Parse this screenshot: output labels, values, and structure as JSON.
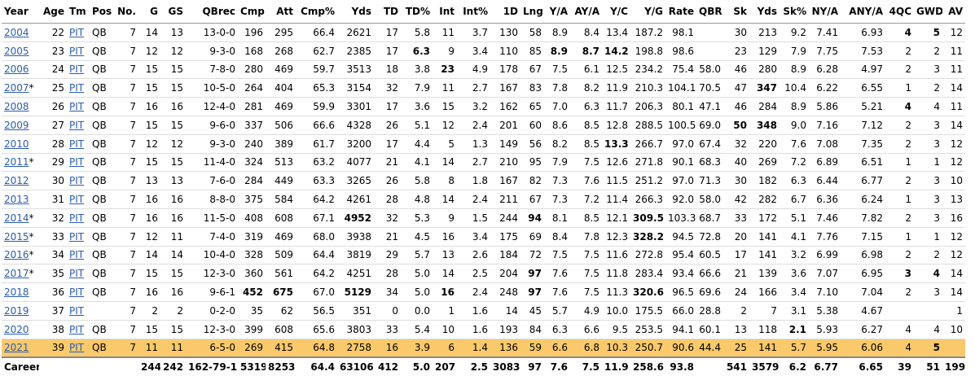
{
  "table": {
    "columns": [
      "Year",
      "Age",
      "Tm",
      "Pos",
      "No.",
      "G",
      "GS",
      "QBrec",
      "Cmp",
      "Att",
      "Cmp%",
      "Yds",
      "TD",
      "TD%",
      "Int",
      "Int%",
      "1D",
      "Lng",
      "Y/A",
      "AY/A",
      "Y/C",
      "Y/G",
      "Rate",
      "QBR",
      "Sk",
      "Yds",
      "Sk%",
      "NY/A",
      "ANY/A",
      "4QC",
      "GWD",
      "AV"
    ],
    "rows": [
      {
        "year": "2004",
        "cells": [
          "22",
          "PIT",
          "QB",
          "7",
          "14",
          "13",
          "13-0-0",
          "196",
          "295",
          "66.4",
          "2621",
          "17",
          "5.8",
          "11",
          "3.7",
          "130",
          "58",
          "8.9",
          "8.4",
          "13.4",
          "187.2",
          "98.1",
          null,
          "30",
          "213",
          "9.2",
          "7.41",
          "6.93",
          "4",
          "5",
          "12"
        ],
        "bold": [
          28,
          29
        ]
      },
      {
        "year": "2005",
        "cells": [
          "23",
          "PIT",
          "QB",
          "7",
          "12",
          "12",
          "9-3-0",
          "168",
          "268",
          "62.7",
          "2385",
          "17",
          "6.3",
          "9",
          "3.4",
          "110",
          "85",
          "8.9",
          "8.7",
          "14.2",
          "198.8",
          "98.6",
          null,
          "23",
          "129",
          "7.9",
          "7.75",
          "7.53",
          "2",
          "2",
          "11"
        ],
        "bold": [
          12,
          17,
          18,
          19
        ]
      },
      {
        "year": "2006",
        "cells": [
          "24",
          "PIT",
          "QB",
          "7",
          "15",
          "15",
          "7-8-0",
          "280",
          "469",
          "59.7",
          "3513",
          "18",
          "3.8",
          "23",
          "4.9",
          "178",
          "67",
          "7.5",
          "6.1",
          "12.5",
          "234.2",
          "75.4",
          "58.0",
          "46",
          "280",
          "8.9",
          "6.28",
          "4.97",
          "2",
          "3",
          "11"
        ],
        "bold": [
          13
        ]
      },
      {
        "year": "2007",
        "mark": "*",
        "cells": [
          "25",
          "PIT",
          "QB",
          "7",
          "15",
          "15",
          "10-5-0",
          "264",
          "404",
          "65.3",
          "3154",
          "32",
          "7.9",
          "11",
          "2.7",
          "167",
          "83",
          "7.8",
          "8.2",
          "11.9",
          "210.3",
          "104.1",
          "70.5",
          "47",
          "347",
          "10.4",
          "6.22",
          "6.55",
          "1",
          "2",
          "14"
        ],
        "bold": [
          24
        ]
      },
      {
        "year": "2008",
        "cells": [
          "26",
          "PIT",
          "QB",
          "7",
          "16",
          "16",
          "12-4-0",
          "281",
          "469",
          "59.9",
          "3301",
          "17",
          "3.6",
          "15",
          "3.2",
          "162",
          "65",
          "7.0",
          "6.3",
          "11.7",
          "206.3",
          "80.1",
          "47.1",
          "46",
          "284",
          "8.9",
          "5.86",
          "5.21",
          "4",
          "4",
          "11"
        ],
        "bold": [
          28
        ]
      },
      {
        "year": "2009",
        "cells": [
          "27",
          "PIT",
          "QB",
          "7",
          "15",
          "15",
          "9-6-0",
          "337",
          "506",
          "66.6",
          "4328",
          "26",
          "5.1",
          "12",
          "2.4",
          "201",
          "60",
          "8.6",
          "8.5",
          "12.8",
          "288.5",
          "100.5",
          "69.0",
          "50",
          "348",
          "9.0",
          "7.16",
          "7.12",
          "2",
          "3",
          "14"
        ],
        "bold": [
          23,
          24
        ]
      },
      {
        "year": "2010",
        "cells": [
          "28",
          "PIT",
          "QB",
          "7",
          "12",
          "12",
          "9-3-0",
          "240",
          "389",
          "61.7",
          "3200",
          "17",
          "4.4",
          "5",
          "1.3",
          "149",
          "56",
          "8.2",
          "8.5",
          "13.3",
          "266.7",
          "97.0",
          "67.4",
          "32",
          "220",
          "7.6",
          "7.08",
          "7.35",
          "2",
          "3",
          "12"
        ],
        "bold": [
          19
        ]
      },
      {
        "year": "2011",
        "mark": "*",
        "cells": [
          "29",
          "PIT",
          "QB",
          "7",
          "15",
          "15",
          "11-4-0",
          "324",
          "513",
          "63.2",
          "4077",
          "21",
          "4.1",
          "14",
          "2.7",
          "210",
          "95",
          "7.9",
          "7.5",
          "12.6",
          "271.8",
          "90.1",
          "68.3",
          "40",
          "269",
          "7.2",
          "6.89",
          "6.51",
          "1",
          "1",
          "12"
        ],
        "bold": []
      },
      {
        "year": "2012",
        "cells": [
          "30",
          "PIT",
          "QB",
          "7",
          "13",
          "13",
          "7-6-0",
          "284",
          "449",
          "63.3",
          "3265",
          "26",
          "5.8",
          "8",
          "1.8",
          "167",
          "82",
          "7.3",
          "7.6",
          "11.5",
          "251.2",
          "97.0",
          "71.3",
          "30",
          "182",
          "6.3",
          "6.44",
          "6.77",
          "2",
          "3",
          "10"
        ],
        "bold": []
      },
      {
        "year": "2013",
        "cells": [
          "31",
          "PIT",
          "QB",
          "7",
          "16",
          "16",
          "8-8-0",
          "375",
          "584",
          "64.2",
          "4261",
          "28",
          "4.8",
          "14",
          "2.4",
          "211",
          "67",
          "7.3",
          "7.2",
          "11.4",
          "266.3",
          "92.0",
          "58.0",
          "42",
          "282",
          "6.7",
          "6.36",
          "6.24",
          "1",
          "3",
          "13"
        ],
        "bold": []
      },
      {
        "year": "2014",
        "mark": "*",
        "cells": [
          "32",
          "PIT",
          "QB",
          "7",
          "16",
          "16",
          "11-5-0",
          "408",
          "608",
          "67.1",
          "4952",
          "32",
          "5.3",
          "9",
          "1.5",
          "244",
          "94",
          "8.1",
          "8.5",
          "12.1",
          "309.5",
          "103.3",
          "68.7",
          "33",
          "172",
          "5.1",
          "7.46",
          "7.82",
          "2",
          "3",
          "16"
        ],
        "bold": [
          10,
          16,
          20
        ]
      },
      {
        "year": "2015",
        "mark": "*",
        "cells": [
          "33",
          "PIT",
          "QB",
          "7",
          "12",
          "11",
          "7-4-0",
          "319",
          "469",
          "68.0",
          "3938",
          "21",
          "4.5",
          "16",
          "3.4",
          "175",
          "69",
          "8.4",
          "7.8",
          "12.3",
          "328.2",
          "94.5",
          "72.8",
          "20",
          "141",
          "4.1",
          "7.76",
          "7.15",
          "1",
          "1",
          "12"
        ],
        "bold": [
          20
        ]
      },
      {
        "year": "2016",
        "mark": "*",
        "cells": [
          "34",
          "PIT",
          "QB",
          "7",
          "14",
          "14",
          "10-4-0",
          "328",
          "509",
          "64.4",
          "3819",
          "29",
          "5.7",
          "13",
          "2.6",
          "184",
          "72",
          "7.5",
          "7.5",
          "11.6",
          "272.8",
          "95.4",
          "60.5",
          "17",
          "141",
          "3.2",
          "6.99",
          "6.98",
          "2",
          "2",
          "12"
        ],
        "bold": []
      },
      {
        "year": "2017",
        "mark": "*",
        "cells": [
          "35",
          "PIT",
          "QB",
          "7",
          "15",
          "15",
          "12-3-0",
          "360",
          "561",
          "64.2",
          "4251",
          "28",
          "5.0",
          "14",
          "2.5",
          "204",
          "97",
          "7.6",
          "7.5",
          "11.8",
          "283.4",
          "93.4",
          "66.6",
          "21",
          "139",
          "3.6",
          "7.07",
          "6.95",
          "3",
          "4",
          "14"
        ],
        "bold": [
          16,
          28,
          29
        ]
      },
      {
        "year": "2018",
        "cells": [
          "36",
          "PIT",
          "QB",
          "7",
          "16",
          "16",
          "9-6-1",
          "452",
          "675",
          "67.0",
          "5129",
          "34",
          "5.0",
          "16",
          "2.4",
          "248",
          "97",
          "7.6",
          "7.5",
          "11.3",
          "320.6",
          "96.5",
          "69.6",
          "24",
          "166",
          "3.4",
          "7.10",
          "7.04",
          "2",
          "3",
          "14"
        ],
        "bold": [
          7,
          8,
          10,
          13,
          16,
          20
        ]
      },
      {
        "year": "2019",
        "cells": [
          "37",
          "PIT",
          null,
          "7",
          "2",
          "2",
          "0-2-0",
          "35",
          "62",
          "56.5",
          "351",
          "0",
          "0.0",
          "1",
          "1.6",
          "14",
          "45",
          "5.7",
          "4.9",
          "10.0",
          "175.5",
          "66.0",
          "28.8",
          "2",
          "7",
          "3.1",
          "5.38",
          "4.67",
          null,
          null,
          "1"
        ],
        "bold": []
      },
      {
        "year": "2020",
        "cells": [
          "38",
          "PIT",
          "QB",
          "7",
          "15",
          "15",
          "12-3-0",
          "399",
          "608",
          "65.6",
          "3803",
          "33",
          "5.4",
          "10",
          "1.6",
          "193",
          "84",
          "6.3",
          "6.6",
          "9.5",
          "253.5",
          "94.1",
          "60.1",
          "13",
          "118",
          "2.1",
          "5.93",
          "6.27",
          "4",
          "4",
          "10"
        ],
        "bold": [
          25
        ]
      },
      {
        "year": "2021",
        "highlight": true,
        "cells": [
          "39",
          "PIT",
          "QB",
          "7",
          "11",
          "11",
          "6-5-0",
          "269",
          "415",
          "64.8",
          "2758",
          "16",
          "3.9",
          "6",
          "1.4",
          "136",
          "59",
          "6.6",
          "6.8",
          "10.3",
          "250.7",
          "90.6",
          "44.4",
          "25",
          "141",
          "5.7",
          "5.95",
          "6.06",
          "4",
          "5",
          null
        ],
        "bold": [
          29
        ]
      }
    ],
    "career": {
      "label": "Career",
      "cells": [
        null,
        null,
        null,
        null,
        "244",
        "242",
        "162-79-1",
        "5319",
        "8253",
        "64.4",
        "63106",
        "412",
        "5.0",
        "207",
        "2.5",
        "3083",
        "97",
        "7.6",
        "7.5",
        "11.9",
        "258.6",
        "93.8",
        null,
        "541",
        "3579",
        "6.2",
        "6.77",
        "6.65",
        "39",
        "51",
        "199"
      ]
    }
  }
}
